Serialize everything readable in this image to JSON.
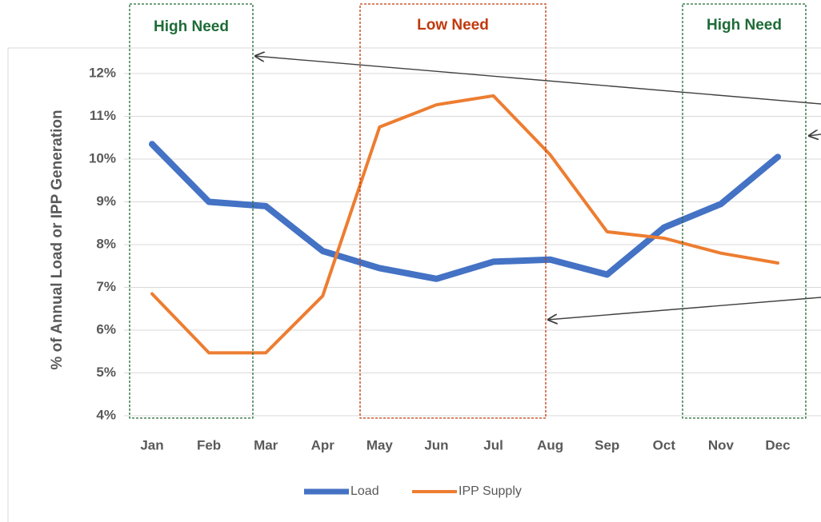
{
  "chart_data": {
    "type": "line",
    "y_label": "% of Annual Load or IPP Generation",
    "categories": [
      "Jan",
      "Feb",
      "Mar",
      "Apr",
      "May",
      "Jun",
      "Jul",
      "Aug",
      "Sep",
      "Oct",
      "Nov",
      "Dec"
    ],
    "series": [
      {
        "name": "Load",
        "color": "#4472c4",
        "values": [
          10.35,
          9.0,
          8.9,
          7.85,
          7.45,
          7.2,
          7.6,
          7.65,
          7.3,
          8.4,
          8.95,
          10.05
        ]
      },
      {
        "name": "IPP Supply",
        "color": "#ed7d31",
        "values": [
          6.85,
          5.47,
          5.47,
          6.8,
          10.75,
          11.27,
          11.48,
          10.1,
          8.3,
          8.15,
          7.8,
          7.57
        ]
      }
    ],
    "ylim": [
      4,
      12
    ],
    "yticks": [
      {
        "value": 4,
        "label": "4%"
      },
      {
        "value": 5,
        "label": "5%"
      },
      {
        "value": 6,
        "label": "6%"
      },
      {
        "value": 7,
        "label": "7%"
      },
      {
        "value": 8,
        "label": "8%"
      },
      {
        "value": 9,
        "label": "9%"
      },
      {
        "value": 10,
        "label": "10%"
      },
      {
        "value": 11,
        "label": "11%"
      },
      {
        "value": 12,
        "label": "12%"
      }
    ],
    "grid": true,
    "legend": "bottom",
    "annotations": [
      {
        "text": "High Need",
        "color": "#1e6b37"
      },
      {
        "text": "Low Need",
        "color": "#c0390b"
      },
      {
        "text": "High Need",
        "color": "#1e6b37"
      }
    ]
  }
}
